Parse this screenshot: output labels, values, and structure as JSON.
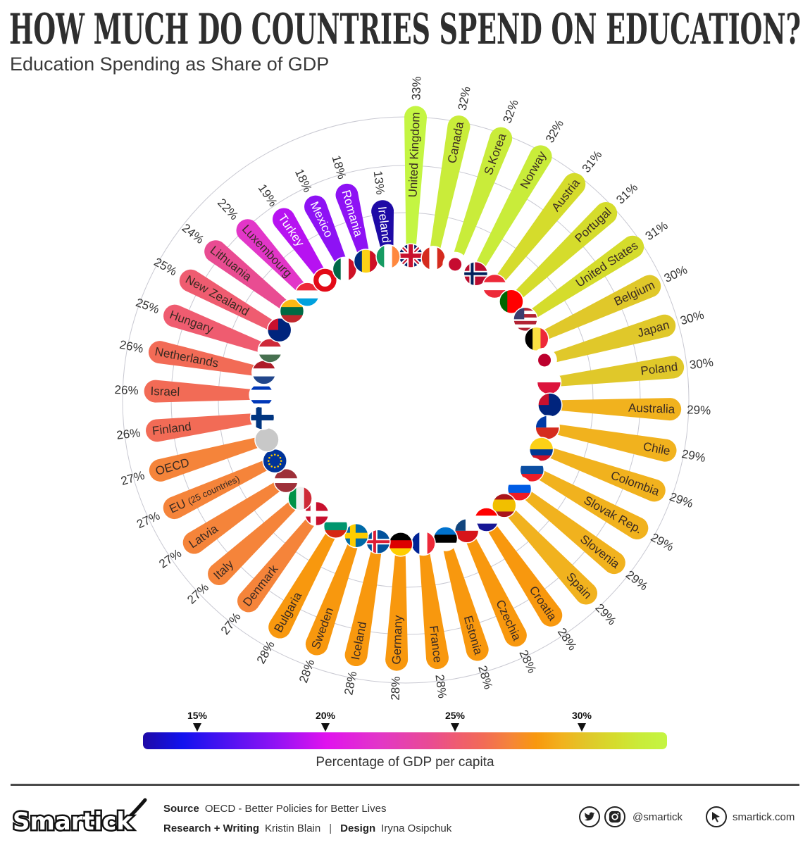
{
  "header": {
    "title": "HOW MUCH DO COUNTRIES SPEND ON EDUCATION?",
    "subtitle": "Education Spending as Share of GDP"
  },
  "chart_data": {
    "type": "bar",
    "layout": "radial",
    "title": "HOW MUCH DO COUNTRIES SPEND ON EDUCATION?",
    "subtitle": "Education Spending as Share of GDP",
    "unit": "%",
    "categories": [
      "United Kingdom",
      "Canada",
      "S.Korea",
      "Norway",
      "Austria",
      "Portugal",
      "United States",
      "Belgium",
      "Japan",
      "Poland",
      "Australia",
      "Chile",
      "Colombia",
      "Slovak Rep.",
      "Slovenia",
      "Spain",
      "Croatia",
      "Czechia",
      "Estonia",
      "France",
      "Germany",
      "Iceland",
      "Sweden",
      "Bulgaria",
      "Denmark",
      "Italy",
      "Latvia",
      "EU (25 countries)",
      "OECD",
      "Finland",
      "Israel",
      "Netherlands",
      "Hungary",
      "New Zealand",
      "Lithuania",
      "Luxembourg",
      "Turkey",
      "Mexico",
      "Romania",
      "Ireland"
    ],
    "values": [
      33,
      32,
      32,
      32,
      31,
      31,
      31,
      30,
      30,
      30,
      29,
      29,
      29,
      29,
      29,
      29,
      28,
      28,
      28,
      28,
      28,
      28,
      28,
      28,
      27,
      27,
      27,
      27,
      27,
      26,
      26,
      26,
      25,
      25,
      24,
      22,
      19,
      18,
      18,
      13
    ],
    "grid": true,
    "colorscale": [
      [
        13,
        "#1e0aa6"
      ],
      [
        14.5,
        "#1212ee"
      ],
      [
        18,
        "#8e12f4"
      ],
      [
        20,
        "#e012ee"
      ],
      [
        22,
        "#e236c8"
      ],
      [
        24,
        "#e94c92"
      ],
      [
        25,
        "#ef5c70"
      ],
      [
        26,
        "#f26b56"
      ],
      [
        27,
        "#f5843a"
      ],
      [
        28,
        "#f8980e"
      ],
      [
        29,
        "#f1b21e"
      ],
      [
        30,
        "#e0c82a"
      ],
      [
        31,
        "#d5dc2c"
      ],
      [
        32,
        "#c9ec3a"
      ],
      [
        33,
        "#c4f542"
      ]
    ],
    "flags": [
      {
        "type": "uk",
        "colors": [
          "#012169",
          "#ffffff",
          "#c8102e"
        ]
      },
      {
        "type": "v",
        "colors": [
          "#d52b1e",
          "#ffffff",
          "#d52b1e"
        ]
      },
      {
        "type": "circle",
        "colors": [
          "#ffffff",
          "#c60c30"
        ]
      },
      {
        "type": "nordic",
        "colors": [
          "#ba0c2f",
          "#ffffff",
          "#00205b"
        ]
      },
      {
        "type": "h",
        "colors": [
          "#ed2939",
          "#ffffff",
          "#ed2939"
        ]
      },
      {
        "type": "v",
        "colors": [
          "#006600",
          "#ff0000",
          "#ff0000"
        ]
      },
      {
        "type": "h",
        "colors": [
          "#b22234",
          "#ffffff",
          "#b22234",
          "#ffffff",
          "#b22234",
          "#ffffff",
          "#b22234"
        ],
        "canton": "#3c3b6e"
      },
      {
        "type": "v",
        "colors": [
          "#000000",
          "#fae042",
          "#ed2939"
        ]
      },
      {
        "type": "circle",
        "colors": [
          "#ffffff",
          "#bc002d"
        ]
      },
      {
        "type": "h",
        "colors": [
          "#ffffff",
          "#dc143c"
        ]
      },
      {
        "type": "h",
        "colors": [
          "#00247d"
        ],
        "canton": "#c8102e"
      },
      {
        "type": "h",
        "colors": [
          "#ffffff",
          "#d52b1e"
        ],
        "canton": "#0039a6"
      },
      {
        "type": "h",
        "colors": [
          "#fcd116",
          "#fcd116",
          "#003893",
          "#ce1126"
        ]
      },
      {
        "type": "h",
        "colors": [
          "#ffffff",
          "#0b4ea2",
          "#ee1c25"
        ]
      },
      {
        "type": "h",
        "colors": [
          "#ffffff",
          "#005ce5",
          "#ed1c24"
        ]
      },
      {
        "type": "h",
        "colors": [
          "#aa151b",
          "#f1bf00",
          "#f1bf00",
          "#aa151b"
        ]
      },
      {
        "type": "h",
        "colors": [
          "#ff0000",
          "#ffffff",
          "#171796"
        ]
      },
      {
        "type": "h",
        "colors": [
          "#ffffff",
          "#d7141a"
        ],
        "canton": "#11457e"
      },
      {
        "type": "h",
        "colors": [
          "#0072ce",
          "#000000",
          "#ffffff"
        ]
      },
      {
        "type": "v",
        "colors": [
          "#002395",
          "#ffffff",
          "#ed2939"
        ]
      },
      {
        "type": "h",
        "colors": [
          "#000000",
          "#dd0000",
          "#ffce00"
        ]
      },
      {
        "type": "nordic",
        "colors": [
          "#02529c",
          "#ffffff",
          "#dc1e35"
        ]
      },
      {
        "type": "nordic",
        "colors": [
          "#006aa7",
          "#fecc00",
          "#fecc00"
        ]
      },
      {
        "type": "h",
        "colors": [
          "#ffffff",
          "#00966e",
          "#d62612"
        ]
      },
      {
        "type": "nordic",
        "colors": [
          "#c8102e",
          "#ffffff",
          "#ffffff"
        ]
      },
      {
        "type": "v",
        "colors": [
          "#009246",
          "#f1f1f1",
          "#ce2b37"
        ]
      },
      {
        "type": "h",
        "colors": [
          "#9e3039",
          "#9e3039",
          "#ffffff",
          "#9e3039",
          "#9e3039"
        ]
      },
      {
        "type": "eu",
        "colors": [
          "#003399",
          "#ffcc00"
        ]
      },
      {
        "type": "h",
        "colors": [
          "#c8c8c8"
        ]
      },
      {
        "type": "nordic",
        "colors": [
          "#ffffff",
          "#003580",
          "#003580"
        ]
      },
      {
        "type": "h",
        "colors": [
          "#ffffff",
          "#0038b8",
          "#ffffff",
          "#ffffff",
          "#ffffff",
          "#0038b8",
          "#ffffff"
        ]
      },
      {
        "type": "h",
        "colors": [
          "#ae1c28",
          "#ffffff",
          "#21468b"
        ]
      },
      {
        "type": "h",
        "colors": [
          "#ce2939",
          "#ffffff",
          "#477050"
        ]
      },
      {
        "type": "h",
        "colors": [
          "#00247d"
        ],
        "canton": "#c8102e"
      },
      {
        "type": "h",
        "colors": [
          "#fdb913",
          "#006a44",
          "#c1272d"
        ]
      },
      {
        "type": "h",
        "colors": [
          "#ed2939",
          "#ffffff",
          "#00a1de"
        ]
      },
      {
        "type": "circle",
        "colors": [
          "#e30a17",
          "#ffffff"
        ]
      },
      {
        "type": "v",
        "colors": [
          "#006847",
          "#ffffff",
          "#ce1126"
        ]
      },
      {
        "type": "v",
        "colors": [
          "#002b7f",
          "#fcd116",
          "#ce1126"
        ]
      },
      {
        "type": "v",
        "colors": [
          "#169b62",
          "#ffffff",
          "#ff883e"
        ]
      }
    ]
  },
  "legend": {
    "ticks": [
      "15%",
      "20%",
      "25%",
      "30%"
    ],
    "label": "Percentage of GDP per capita"
  },
  "footer": {
    "logo": "Smartick",
    "source_label": "Source",
    "source_value": "OECD - Better Policies for Better Lives",
    "research_label": "Research + Writing",
    "research_value": "Kristin Blain",
    "separator": "|",
    "design_label": "Design",
    "design_value": "Iryna Osipchuk",
    "social_handle": "@smartick",
    "website": "smartick.com"
  }
}
